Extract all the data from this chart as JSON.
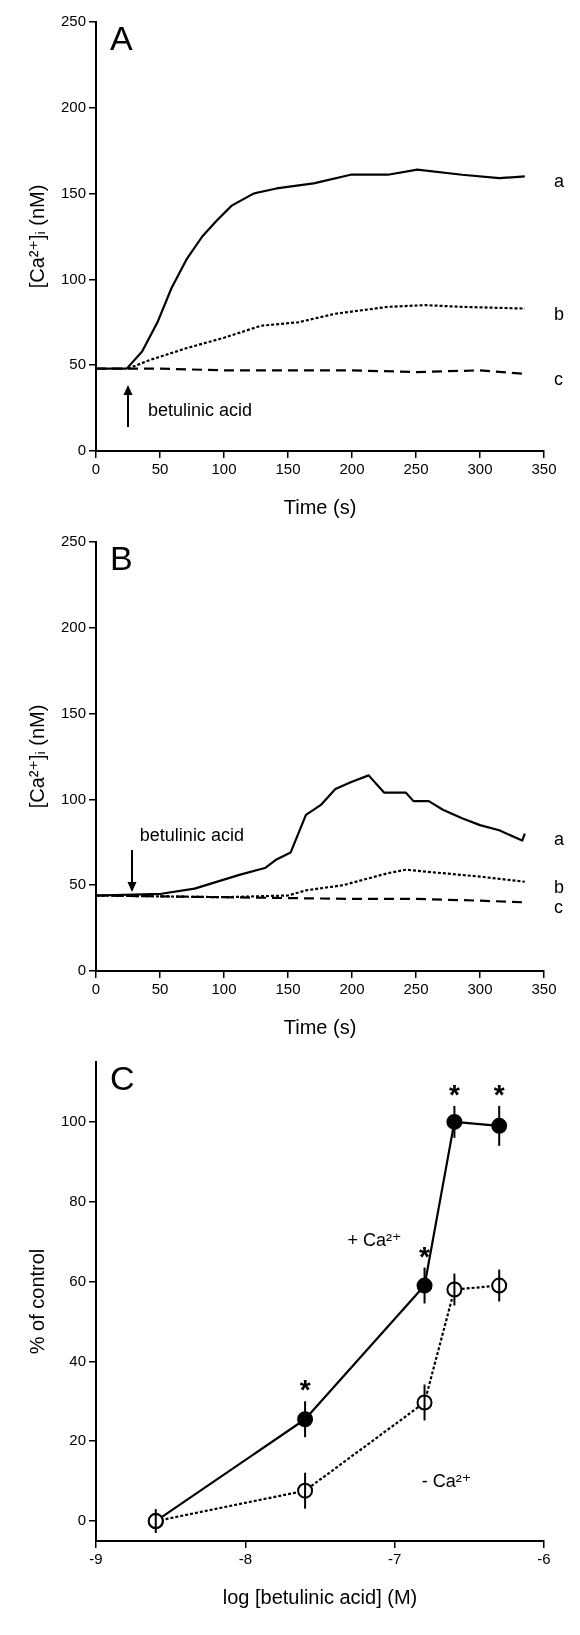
{
  "chart_data": [
    {
      "type": "line",
      "title": "A",
      "xlabel": "Time (s)",
      "ylabel": "[Ca²⁺]ᵢ (nM)",
      "xlim": [
        0,
        350
      ],
      "xticks": [
        0,
        50,
        100,
        150,
        200,
        250,
        300,
        350
      ],
      "ylim": [
        0,
        250
      ],
      "yticks": [
        0,
        50,
        100,
        150,
        200,
        250
      ],
      "marker": "none",
      "annotations": [
        {
          "text": "betulinic acid",
          "x": 25,
          "y": 48
        }
      ],
      "series": [
        {
          "name": "a",
          "color": "#000000",
          "line_style": "solid",
          "x": [
            0,
            15,
            24,
            36,
            48,
            59,
            71,
            83,
            94,
            106,
            123,
            141,
            170,
            199,
            228,
            251,
            286,
            315,
            335
          ],
          "values": [
            48,
            48,
            48,
            58,
            75,
            95,
            112,
            125,
            134,
            143,
            150,
            153,
            156,
            161,
            161,
            164,
            161,
            159,
            160
          ]
        },
        {
          "name": "b",
          "color": "#000000",
          "line_style": "dotted",
          "x": [
            25,
            42,
            71,
            100,
            129,
            158,
            187,
            228,
            257,
            286,
            335
          ],
          "values": [
            48,
            53,
            60,
            66,
            73,
            75,
            80,
            84,
            85,
            84,
            83
          ]
        },
        {
          "name": "c",
          "color": "#000000",
          "line_style": "dashed",
          "x": [
            0,
            25,
            50,
            100,
            150,
            200,
            250,
            300,
            335
          ],
          "values": [
            48,
            48,
            48,
            47,
            47,
            47,
            46,
            47,
            45
          ]
        }
      ]
    },
    {
      "type": "line",
      "title": "B",
      "xlabel": "Time (s)",
      "ylabel": "[Ca²⁺]ᵢ (nM)",
      "xlim": [
        0,
        350
      ],
      "xticks": [
        0,
        50,
        100,
        150,
        200,
        250,
        300,
        350
      ],
      "ylim": [
        0,
        250
      ],
      "yticks": [
        0,
        50,
        100,
        150,
        200,
        250
      ],
      "marker": "none",
      "annotations": [
        {
          "text": "betulinic acid",
          "x": 28,
          "y": 45
        }
      ],
      "series": [
        {
          "name": "a",
          "color": "#000000",
          "line_style": "solid",
          "x": [
            0,
            51,
            77,
            112,
            132,
            141,
            152,
            164,
            176,
            187,
            199,
            213,
            225,
            242,
            248,
            260,
            271,
            286,
            300,
            315,
            333,
            335
          ],
          "values": [
            44,
            45,
            48,
            56,
            60,
            65,
            69,
            91,
            97,
            106,
            110,
            114,
            104,
            104,
            99,
            99,
            94,
            89,
            85,
            82,
            76,
            80
          ]
        },
        {
          "name": "b",
          "color": "#000000",
          "line_style": "dotted",
          "x": [
            0,
            100,
            150,
            164,
            193,
            228,
            242,
            271,
            300,
            335
          ],
          "values": [
            44,
            43,
            44,
            47,
            50,
            57,
            59,
            57,
            55,
            52
          ]
        },
        {
          "name": "c",
          "color": "#000000",
          "line_style": "dashed",
          "x": [
            0,
            100,
            200,
            250,
            300,
            335
          ],
          "values": [
            44,
            43,
            42,
            42,
            41,
            40
          ]
        }
      ]
    },
    {
      "type": "line",
      "title": "C",
      "xlabel": "log [betulinic acid] (M)",
      "ylabel": "% of control",
      "xlim": [
        -9,
        -6
      ],
      "xticks": [
        -9,
        -8,
        -7,
        -6
      ],
      "ylim": [
        -5,
        115
      ],
      "yticks": [
        0,
        20,
        40,
        60,
        80,
        100
      ],
      "marker": "circle",
      "series": [
        {
          "name": "+ Ca²⁺",
          "color": "#000000",
          "line_style": "solid",
          "x": [
            -8.6,
            -7.6,
            -6.8,
            -6.6,
            -6.3
          ],
          "values": [
            0,
            25.5,
            59,
            100,
            99
          ],
          "errors": [
            null,
            4.5,
            4.5,
            4,
            5
          ],
          "value_labels": [
            null,
            "*",
            "*",
            "*",
            "*"
          ]
        },
        {
          "name": "- Ca²⁺",
          "color": "#000000",
          "line_style": "dotted",
          "x": [
            -8.6,
            -7.6,
            -6.8,
            -6.6,
            -6.3
          ],
          "values": [
            0,
            7.6,
            29.7,
            58,
            59
          ],
          "errors": [
            3,
            4.5,
            4.5,
            4,
            4
          ]
        }
      ]
    }
  ]
}
